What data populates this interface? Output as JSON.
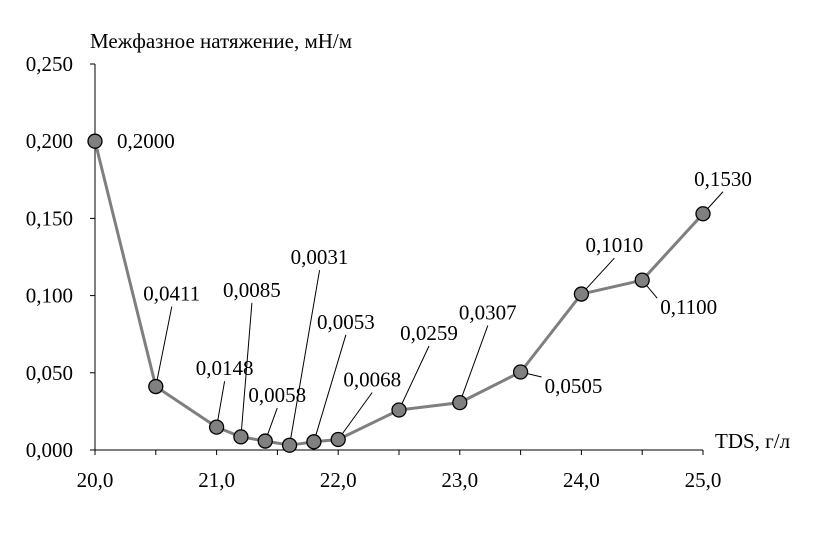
{
  "chart_data": {
    "type": "line",
    "ylabel": "Межфазное натяжение, мН/м",
    "xlabel": "TDS, г/л",
    "xlim": [
      20.0,
      25.0
    ],
    "ylim": [
      0.0,
      0.25
    ],
    "x_ticks": [
      "20,0",
      "21,0",
      "22,0",
      "23,0",
      "24,0",
      "25,0"
    ],
    "y_ticks": [
      "0,000",
      "0,050",
      "0,100",
      "0,150",
      "0,200",
      "0,250"
    ],
    "grid": false,
    "legend": "none",
    "series_color": "#7f7f7f",
    "marker_color": "#808080",
    "points": [
      {
        "x": 20.0,
        "y": 0.2,
        "label": "0,2000"
      },
      {
        "x": 20.5,
        "y": 0.0411,
        "label": "0,0411"
      },
      {
        "x": 21.0,
        "y": 0.0148,
        "label": "0,0148"
      },
      {
        "x": 21.2,
        "y": 0.0085,
        "label": "0,0085"
      },
      {
        "x": 21.4,
        "y": 0.0058,
        "label": "0,0058"
      },
      {
        "x": 21.6,
        "y": 0.0031,
        "label": "0,0031"
      },
      {
        "x": 21.8,
        "y": 0.0053,
        "label": "0,0053"
      },
      {
        "x": 22.0,
        "y": 0.0068,
        "label": "0,0068"
      },
      {
        "x": 22.5,
        "y": 0.0259,
        "label": "0,0259"
      },
      {
        "x": 23.0,
        "y": 0.0307,
        "label": "0,0307"
      },
      {
        "x": 23.5,
        "y": 0.0505,
        "label": "0,0505"
      },
      {
        "x": 24.0,
        "y": 0.101,
        "label": "0,1010"
      },
      {
        "x": 24.5,
        "y": 0.11,
        "label": "0,1100"
      },
      {
        "x": 25.0,
        "y": 0.153,
        "label": "0,1530"
      }
    ]
  }
}
